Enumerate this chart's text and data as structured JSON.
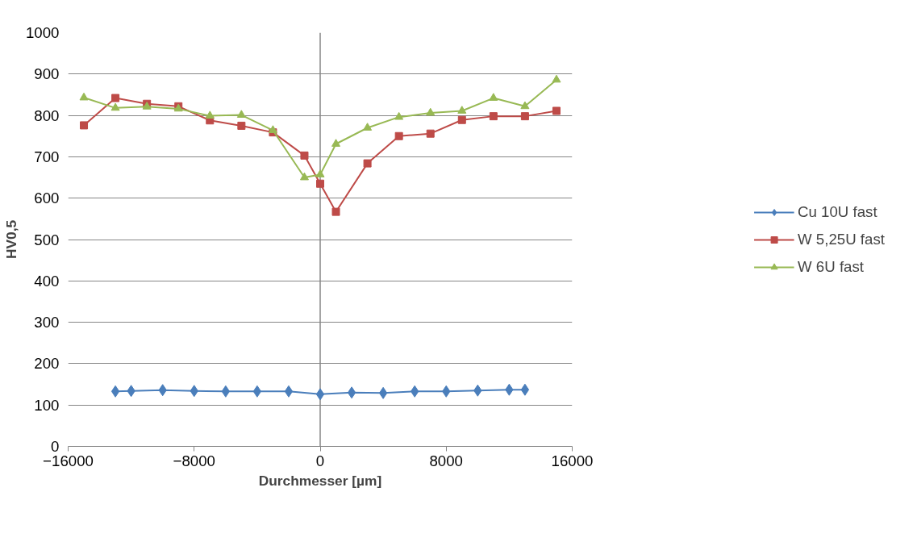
{
  "chart_data": {
    "type": "line",
    "xlabel": "Durchmesser [µm]",
    "ylabel": "HV0,5",
    "xlim": [
      -16000,
      16000
    ],
    "xticks": [
      -16000,
      -8000,
      0,
      8000,
      16000
    ],
    "ylim": [
      0,
      1000
    ],
    "yticks": [
      0,
      100,
      200,
      300,
      400,
      500,
      600,
      700,
      800,
      900,
      1000
    ],
    "grid": "y",
    "legend": "right",
    "series": [
      {
        "name": "Cu 10U fast",
        "color": "#4a7ebb",
        "marker": "diamond",
        "x": [
          -13000,
          -12000,
          -10000,
          -8000,
          -6000,
          -4000,
          -2000,
          0,
          2000,
          4000,
          6000,
          8000,
          10000,
          12000,
          13000
        ],
        "values": [
          133,
          134,
          136,
          134,
          133,
          133,
          133,
          126,
          130,
          129,
          133,
          133,
          135,
          137,
          137
        ]
      },
      {
        "name": "W 5,25U fast",
        "color": "#be4b48",
        "marker": "square",
        "x": [
          -15000,
          -13000,
          -11000,
          -9000,
          -7000,
          -5000,
          -3000,
          -1000,
          0,
          1000,
          3000,
          5000,
          7000,
          9000,
          11000,
          13000,
          15000
        ],
        "values": [
          776,
          842,
          828,
          822,
          788,
          775,
          759,
          703,
          635,
          567,
          684,
          750,
          756,
          789,
          798,
          798,
          811
        ]
      },
      {
        "name": "W 6U fast",
        "color": "#98b954",
        "marker": "triangle",
        "x": [
          -15000,
          -13000,
          -11000,
          -9000,
          -7000,
          -5000,
          -3000,
          -1000,
          0,
          1000,
          3000,
          5000,
          7000,
          9000,
          11000,
          13000,
          15000
        ],
        "values": [
          843,
          818,
          821,
          816,
          799,
          801,
          764,
          650,
          657,
          731,
          770,
          796,
          806,
          811,
          842,
          822,
          886
        ]
      }
    ]
  }
}
